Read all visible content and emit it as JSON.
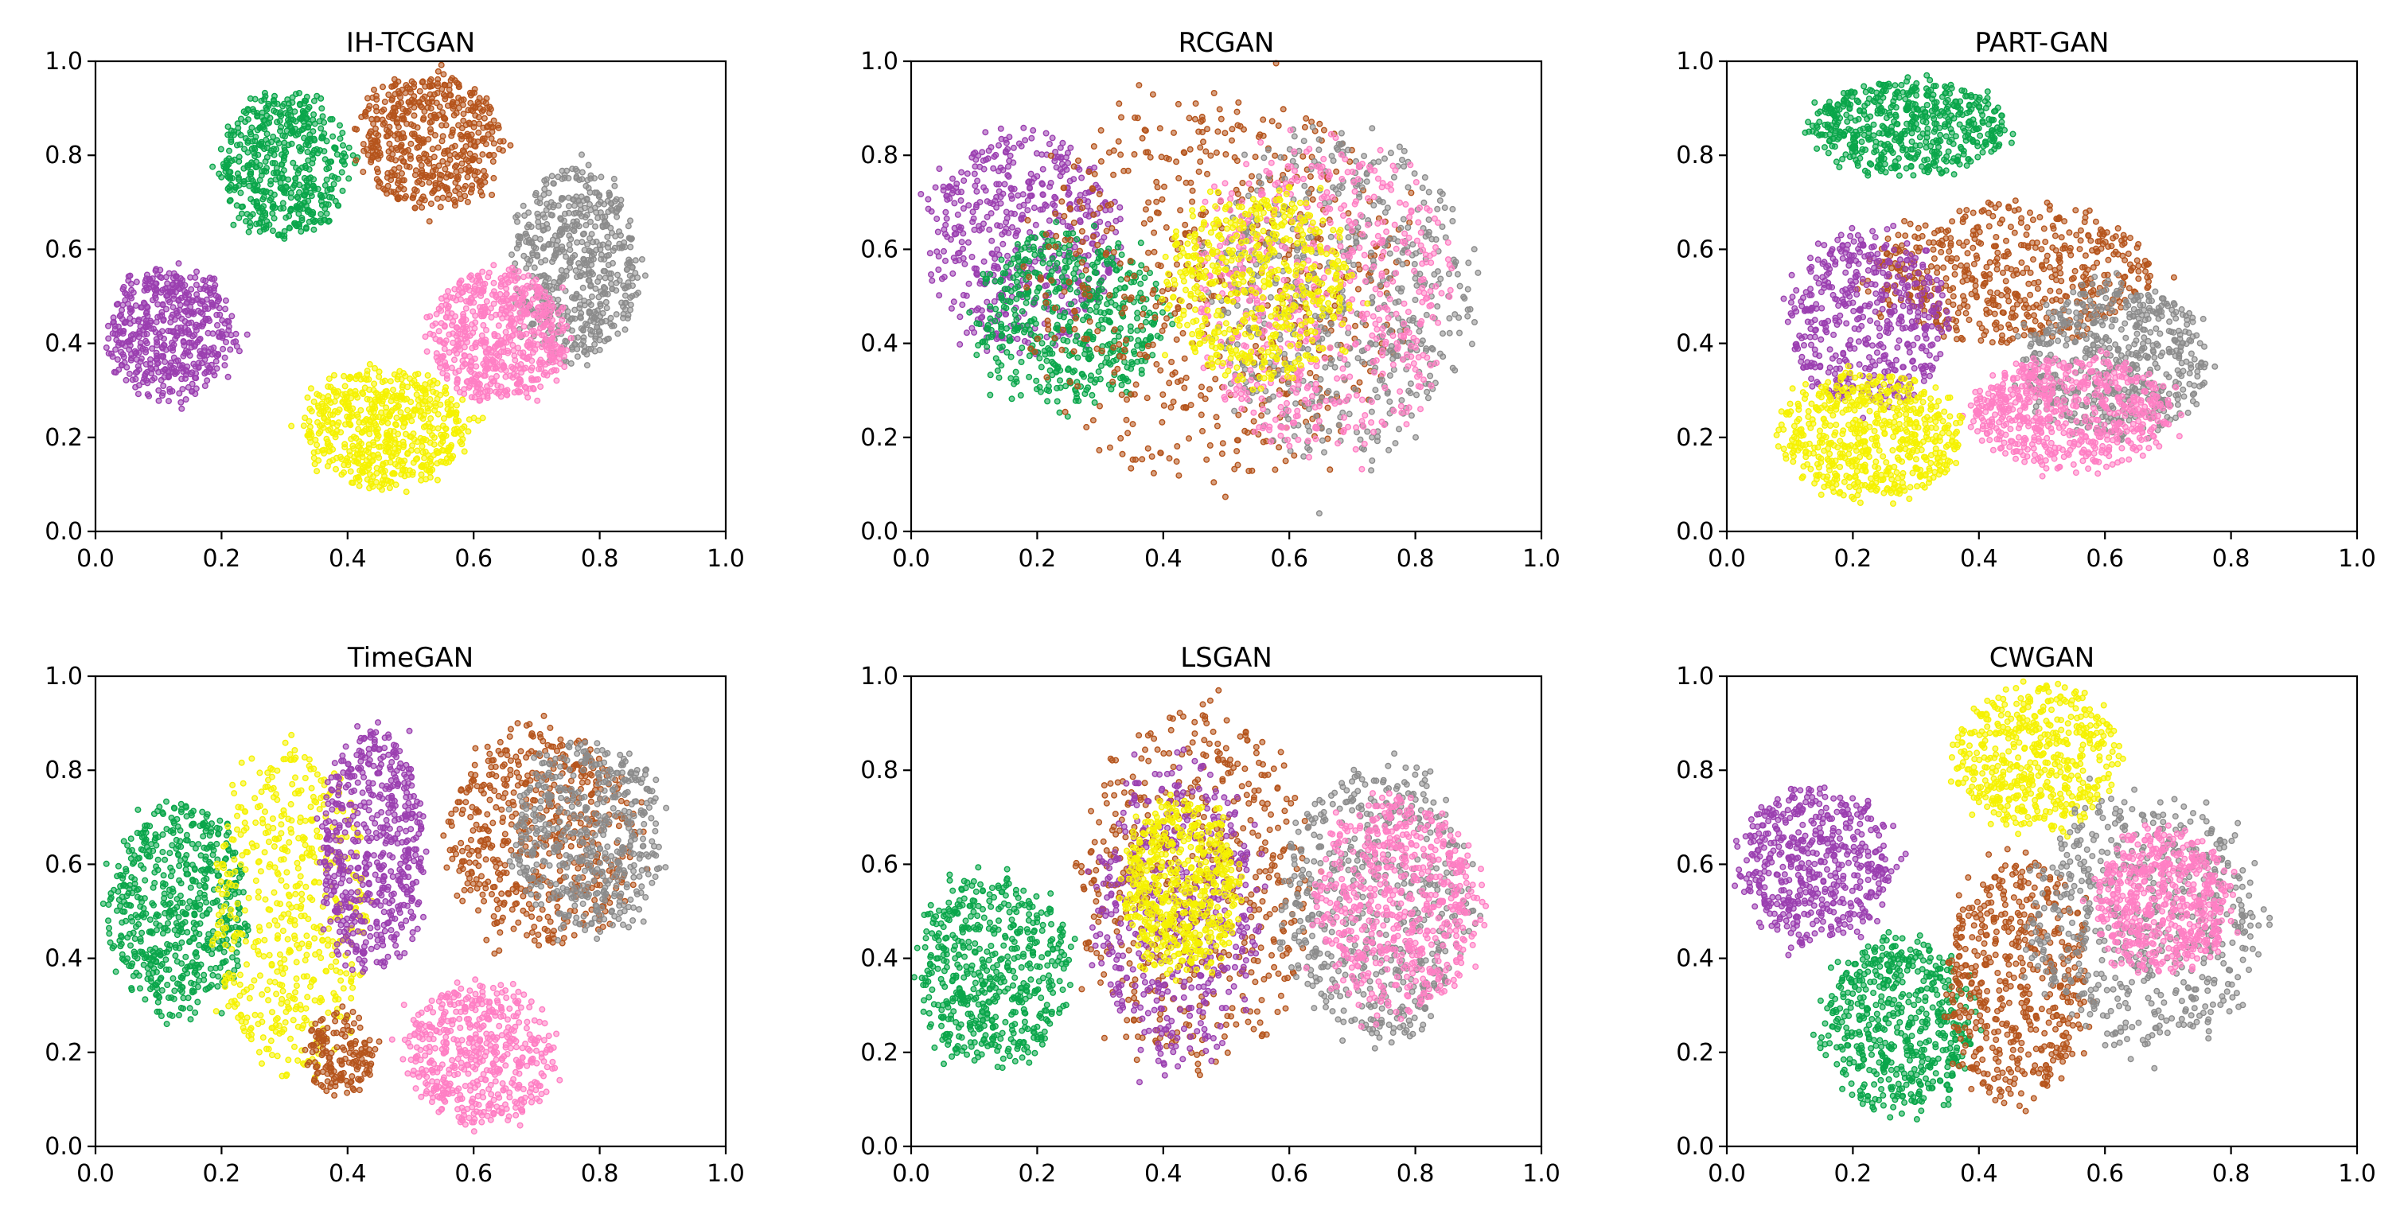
{
  "figure": {
    "description_free": true
  },
  "colors": {
    "purple": "#9b3fb0",
    "green": "#0aa64a",
    "brown": "#b5541c",
    "gray": "#8c8c8c",
    "pink": "#ff7fc4",
    "yellow": "#f5f200"
  },
  "chart_data": [
    {
      "type": "scatter",
      "title": "IH-TCGAN",
      "xlim": [
        0,
        1
      ],
      "ylim": [
        0,
        1
      ],
      "xticks": [
        "0.0",
        "0.2",
        "0.4",
        "0.6",
        "0.8",
        "1.0"
      ],
      "yticks": [
        "0.0",
        "0.2",
        "0.4",
        "0.6",
        "0.8",
        "1.0"
      ],
      "clusters": [
        {
          "color": "purple",
          "cx": 0.12,
          "cy": 0.42,
          "rx": 0.11,
          "ry": 0.15,
          "n": 520
        },
        {
          "color": "green",
          "cx": 0.3,
          "cy": 0.78,
          "rx": 0.11,
          "ry": 0.17,
          "n": 520
        },
        {
          "color": "brown",
          "cx": 0.53,
          "cy": 0.83,
          "rx": 0.12,
          "ry": 0.16,
          "n": 520
        },
        {
          "color": "gray",
          "cx": 0.76,
          "cy": 0.57,
          "rx": 0.11,
          "ry": 0.22,
          "n": 560
        },
        {
          "color": "pink",
          "cx": 0.64,
          "cy": 0.42,
          "rx": 0.12,
          "ry": 0.15,
          "n": 600
        },
        {
          "color": "yellow",
          "cx": 0.46,
          "cy": 0.22,
          "rx": 0.14,
          "ry": 0.14,
          "n": 600
        }
      ]
    },
    {
      "type": "scatter",
      "title": "RCGAN",
      "xlim": [
        0,
        1
      ],
      "ylim": [
        0,
        1
      ],
      "xticks": [
        "0.0",
        "0.2",
        "0.4",
        "0.6",
        "0.8",
        "1.0"
      ],
      "yticks": [
        "0.0",
        "0.2",
        "0.4",
        "0.6",
        "0.8",
        "1.0"
      ],
      "clusters": [
        {
          "color": "purple",
          "cx": 0.18,
          "cy": 0.62,
          "rx": 0.16,
          "ry": 0.25,
          "n": 520
        },
        {
          "color": "green",
          "cx": 0.25,
          "cy": 0.45,
          "rx": 0.16,
          "ry": 0.2,
          "n": 520
        },
        {
          "color": "brown",
          "cx": 0.48,
          "cy": 0.52,
          "rx": 0.32,
          "ry": 0.45,
          "n": 600
        },
        {
          "color": "gray",
          "cx": 0.68,
          "cy": 0.5,
          "rx": 0.22,
          "ry": 0.38,
          "n": 600
        },
        {
          "color": "pink",
          "cx": 0.65,
          "cy": 0.5,
          "rx": 0.22,
          "ry": 0.36,
          "n": 560
        },
        {
          "color": "yellow",
          "cx": 0.55,
          "cy": 0.52,
          "rx": 0.16,
          "ry": 0.22,
          "n": 520
        }
      ]
    },
    {
      "type": "scatter",
      "title": "PART-GAN",
      "xlim": [
        0,
        1
      ],
      "ylim": [
        0,
        1
      ],
      "xticks": [
        "0.0",
        "0.2",
        "0.4",
        "0.6",
        "0.8",
        "1.0"
      ],
      "yticks": [
        "0.0",
        "0.2",
        "0.4",
        "0.6",
        "0.8",
        "1.0"
      ],
      "clusters": [
        {
          "color": "green",
          "cx": 0.29,
          "cy": 0.86,
          "rx": 0.17,
          "ry": 0.11,
          "n": 560
        },
        {
          "color": "brown",
          "cx": 0.45,
          "cy": 0.55,
          "rx": 0.24,
          "ry": 0.16,
          "n": 560
        },
        {
          "color": "purple",
          "cx": 0.22,
          "cy": 0.45,
          "rx": 0.14,
          "ry": 0.2,
          "n": 480
        },
        {
          "color": "gray",
          "cx": 0.62,
          "cy": 0.36,
          "rx": 0.16,
          "ry": 0.18,
          "n": 560
        },
        {
          "color": "pink",
          "cx": 0.55,
          "cy": 0.25,
          "rx": 0.17,
          "ry": 0.13,
          "n": 600
        },
        {
          "color": "yellow",
          "cx": 0.23,
          "cy": 0.2,
          "rx": 0.16,
          "ry": 0.15,
          "n": 600
        }
      ]
    },
    {
      "type": "scatter",
      "title": "TimeGAN",
      "xlim": [
        0,
        1
      ],
      "ylim": [
        0,
        1
      ],
      "xticks": [
        "0.0",
        "0.2",
        "0.4",
        "0.6",
        "0.8",
        "1.0"
      ],
      "yticks": [
        "0.0",
        "0.2",
        "0.4",
        "0.6",
        "0.8",
        "1.0"
      ],
      "clusters": [
        {
          "color": "green",
          "cx": 0.13,
          "cy": 0.5,
          "rx": 0.12,
          "ry": 0.25,
          "n": 600
        },
        {
          "color": "yellow",
          "cx": 0.31,
          "cy": 0.5,
          "rx": 0.13,
          "ry": 0.38,
          "n": 520
        },
        {
          "color": "purple",
          "cx": 0.44,
          "cy": 0.63,
          "rx": 0.09,
          "ry": 0.28,
          "n": 560
        },
        {
          "color": "brown",
          "cx": 0.71,
          "cy": 0.66,
          "rx": 0.16,
          "ry": 0.25,
          "n": 560
        },
        {
          "color": "gray",
          "cx": 0.78,
          "cy": 0.66,
          "rx": 0.13,
          "ry": 0.22,
          "n": 520
        },
        {
          "color": "pink",
          "cx": 0.61,
          "cy": 0.2,
          "rx": 0.13,
          "ry": 0.16,
          "n": 520
        },
        {
          "color": "brown",
          "cx": 0.39,
          "cy": 0.2,
          "rx": 0.06,
          "ry": 0.1,
          "n": 160
        }
      ]
    },
    {
      "type": "scatter",
      "title": "LSGAN",
      "xlim": [
        0,
        1
      ],
      "ylim": [
        0,
        1
      ],
      "xticks": [
        "0.0",
        "0.2",
        "0.4",
        "0.6",
        "0.8",
        "1.0"
      ],
      "yticks": [
        "0.0",
        "0.2",
        "0.4",
        "0.6",
        "0.8",
        "1.0"
      ],
      "clusters": [
        {
          "color": "green",
          "cx": 0.13,
          "cy": 0.37,
          "rx": 0.13,
          "ry": 0.22,
          "n": 560
        },
        {
          "color": "brown",
          "cx": 0.45,
          "cy": 0.55,
          "rx": 0.2,
          "ry": 0.42,
          "n": 520
        },
        {
          "color": "purple",
          "cx": 0.42,
          "cy": 0.5,
          "rx": 0.14,
          "ry": 0.35,
          "n": 480
        },
        {
          "color": "yellow",
          "cx": 0.43,
          "cy": 0.55,
          "rx": 0.1,
          "ry": 0.2,
          "n": 560
        },
        {
          "color": "gray",
          "cx": 0.74,
          "cy": 0.52,
          "rx": 0.16,
          "ry": 0.32,
          "n": 600
        },
        {
          "color": "pink",
          "cx": 0.77,
          "cy": 0.52,
          "rx": 0.14,
          "ry": 0.25,
          "n": 600
        }
      ]
    },
    {
      "type": "scatter",
      "title": "CWGAN",
      "xlim": [
        0,
        1
      ],
      "ylim": [
        0,
        1
      ],
      "xticks": [
        "0.0",
        "0.2",
        "0.4",
        "0.6",
        "0.8",
        "1.0"
      ],
      "yticks": [
        "0.0",
        "0.2",
        "0.4",
        "0.6",
        "0.8",
        "1.0"
      ],
      "clusters": [
        {
          "color": "purple",
          "cx": 0.14,
          "cy": 0.6,
          "rx": 0.13,
          "ry": 0.18,
          "n": 520
        },
        {
          "color": "yellow",
          "cx": 0.49,
          "cy": 0.83,
          "rx": 0.14,
          "ry": 0.17,
          "n": 520
        },
        {
          "color": "green",
          "cx": 0.27,
          "cy": 0.26,
          "rx": 0.13,
          "ry": 0.2,
          "n": 560
        },
        {
          "color": "brown",
          "cx": 0.46,
          "cy": 0.35,
          "rx": 0.12,
          "ry": 0.28,
          "n": 520
        },
        {
          "color": "gray",
          "cx": 0.66,
          "cy": 0.48,
          "rx": 0.2,
          "ry": 0.3,
          "n": 600
        },
        {
          "color": "pink",
          "cx": 0.69,
          "cy": 0.52,
          "rx": 0.12,
          "ry": 0.16,
          "n": 560
        }
      ]
    }
  ]
}
